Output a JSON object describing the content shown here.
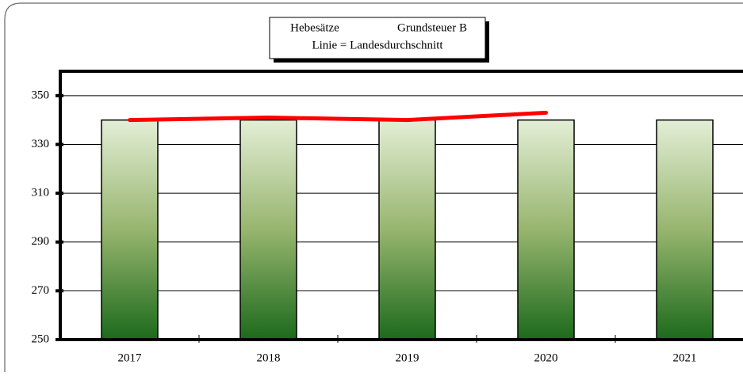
{
  "chart_data": {
    "type": "bar",
    "title": "Hebesätze",
    "subtitle": "Grundsteuer B",
    "annotation": "Linie = Landesdurchschnitt",
    "categories": [
      "2017",
      "2018",
      "2019",
      "2020",
      "2021"
    ],
    "series": [
      {
        "type": "bar",
        "color": "#1f6b1f",
        "values": [
          340,
          340,
          340,
          340,
          340
        ]
      },
      {
        "type": "line",
        "color": "#ff0000",
        "values": [
          340,
          341,
          340,
          343,
          null
        ]
      }
    ],
    "ylim": [
      250,
      360
    ],
    "yticks": [
      250,
      270,
      290,
      310,
      330,
      350
    ],
    "grid": true
  }
}
